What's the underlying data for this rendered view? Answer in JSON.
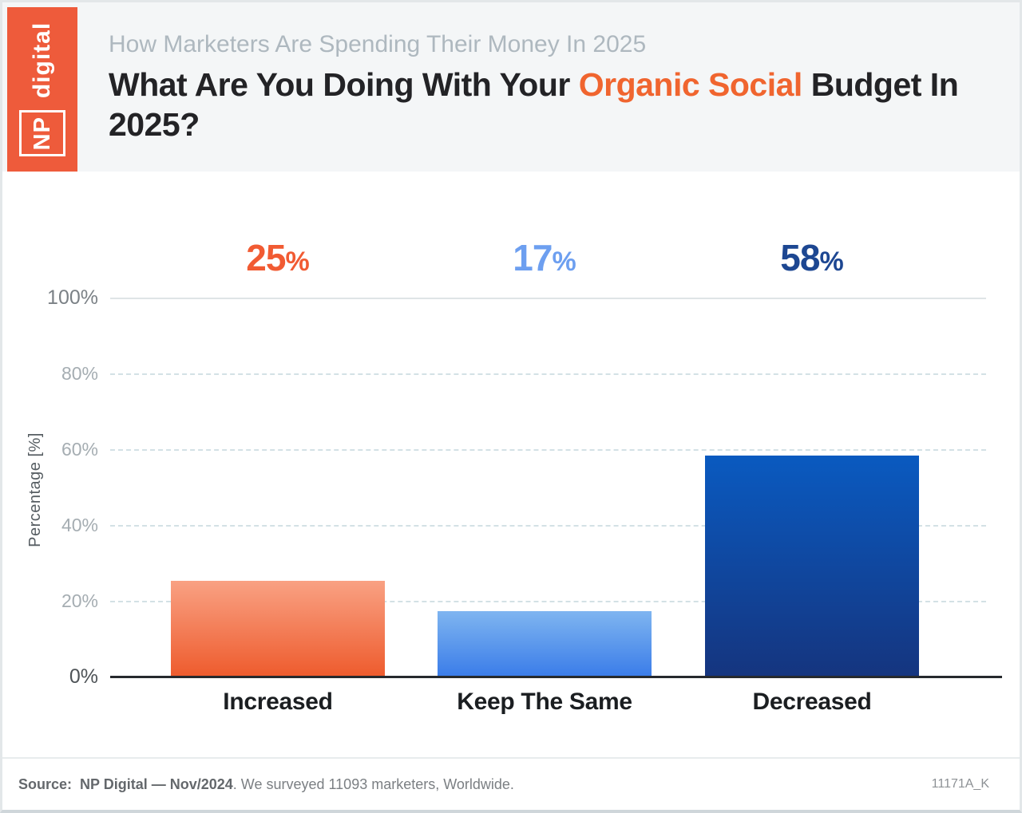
{
  "brand": {
    "np": "NP",
    "word": "digital",
    "logo_bg": "#ee5b3b"
  },
  "header": {
    "kicker": "How Marketers Are Spending Their Money In 2025",
    "title_prefix": "What Are You Doing With Your ",
    "title_highlight": "Organic Social",
    "title_suffix": " Budget In 2025?",
    "highlight_color": "#f0652f",
    "background": "#f4f6f7"
  },
  "chart_data": {
    "type": "bar",
    "title": "What Are You Doing With Your Organic Social Budget In 2025?",
    "subtitle": "How Marketers Are Spending Their Money In 2025",
    "categories": [
      "Increased",
      "Keep The Same",
      "Decreased"
    ],
    "values": [
      25,
      17,
      58
    ],
    "unit": "%",
    "value_label_colors": [
      "#f15b33",
      "#6d9ff0",
      "#1d4792"
    ],
    "bar_gradients": [
      {
        "top": "#f9a183",
        "bottom": "#ee5c2e"
      },
      {
        "top": "#7fb5f0",
        "bottom": "#3b7de9"
      },
      {
        "top": "#0a5ac0",
        "bottom": "#15357f"
      }
    ],
    "xlabel": "",
    "ylabel": "Percentage [%]",
    "ylim": [
      0,
      100
    ],
    "yticks": [
      "100%",
      "80%",
      "60%",
      "40%",
      "20%",
      "0%"
    ],
    "grid": "horizontal, dashed (solid at 100%), baseline solid dark",
    "legend": "none"
  },
  "footer": {
    "source_label": "Source:",
    "source_main": "NP Digital — Nov/2024",
    "source_rest": ". We surveyed 11093 marketers, Worldwide.",
    "code": "11171A_K"
  }
}
